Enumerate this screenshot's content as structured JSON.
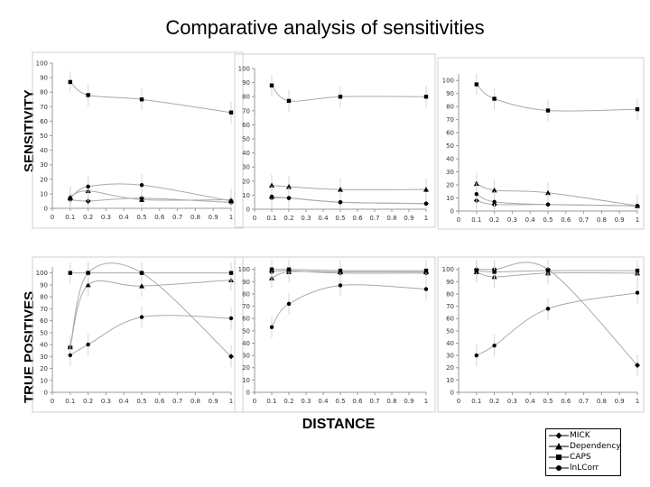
{
  "title": "Comparative analysis of sensitivities",
  "row_labels": [
    "SENSITIVITY",
    "TRUE POSITIVES"
  ],
  "x_axis_label": "DISTANCE",
  "legend": [
    "MICK",
    "Dependency",
    "CAPS",
    "lnLCorr"
  ],
  "colors": {
    "line": "#aaaaaa",
    "marker": "#000000",
    "axis": "#999999"
  },
  "chart_data": [
    {
      "type": "line",
      "panel": "sensitivity-1",
      "x_ticks": [
        0,
        0.1,
        0.2,
        0.3,
        0.4,
        0.5,
        0.6,
        0.7,
        0.8,
        0.9,
        1
      ],
      "xlim": [
        0,
        1
      ],
      "y_ticks": [
        0,
        10,
        20,
        30,
        40,
        50,
        60,
        70,
        80,
        90,
        100
      ],
      "ylim": [
        0,
        100
      ],
      "series": [
        {
          "name": "MICK",
          "x": [
            0.1,
            0.2,
            0.5,
            1
          ],
          "y": [
            6,
            5,
            7,
            4
          ]
        },
        {
          "name": "Dependency",
          "x": [
            0.1,
            0.2,
            0.5,
            1
          ],
          "y": [
            8,
            12,
            6,
            6
          ]
        },
        {
          "name": "CAPS",
          "x": [
            0.1,
            0.2,
            0.5,
            1
          ],
          "y": [
            87,
            78,
            75,
            66
          ]
        },
        {
          "name": "lnLCorr",
          "x": [
            0.1,
            0.2,
            0.5,
            1
          ],
          "y": [
            7,
            15,
            16,
            5
          ]
        }
      ]
    },
    {
      "type": "line",
      "panel": "sensitivity-2",
      "x_ticks": [
        0,
        0.1,
        0.2,
        0.3,
        0.4,
        0.5,
        0.6,
        0.7,
        0.8,
        0.9,
        1
      ],
      "xlim": [
        0,
        1
      ],
      "y_ticks": [
        0,
        10,
        20,
        30,
        40,
        50,
        60,
        70,
        80,
        90,
        100
      ],
      "ylim": [
        0,
        100
      ],
      "series": [
        {
          "name": "MICK",
          "x": [
            0.1,
            0.2,
            0.5,
            1
          ],
          "y": [
            8,
            8,
            5,
            4
          ]
        },
        {
          "name": "Dependency",
          "x": [
            0.1,
            0.2,
            0.5,
            1
          ],
          "y": [
            17,
            16,
            14,
            14
          ]
        },
        {
          "name": "CAPS",
          "x": [
            0.1,
            0.2,
            0.5,
            1
          ],
          "y": [
            88,
            77,
            80,
            80
          ]
        },
        {
          "name": "lnLCorr",
          "x": [
            0.1,
            0.2,
            0.5,
            1
          ],
          "y": [
            9,
            8,
            5,
            4
          ]
        }
      ]
    },
    {
      "type": "line",
      "panel": "sensitivity-3",
      "x_ticks": [
        0,
        0.1,
        0.2,
        0.3,
        0.4,
        0.5,
        0.6,
        0.7,
        0.8,
        0.9,
        1
      ],
      "xlim": [
        0,
        1
      ],
      "y_ticks": [
        0,
        10,
        20,
        30,
        40,
        50,
        60,
        70,
        80,
        90,
        100
      ],
      "ylim": [
        0,
        105
      ],
      "series": [
        {
          "name": "MICK",
          "x": [
            0.1,
            0.2,
            0.5,
            1
          ],
          "y": [
            8,
            5,
            5,
            4
          ]
        },
        {
          "name": "Dependency",
          "x": [
            0.1,
            0.2,
            0.5,
            1
          ],
          "y": [
            21,
            16,
            14,
            4
          ]
        },
        {
          "name": "CAPS",
          "x": [
            0.1,
            0.2,
            0.5,
            1
          ],
          "y": [
            97,
            86,
            77,
            78
          ]
        },
        {
          "name": "lnLCorr",
          "x": [
            0.1,
            0.2,
            0.5,
            1
          ],
          "y": [
            13,
            7,
            5,
            4
          ]
        }
      ]
    },
    {
      "type": "line",
      "panel": "true-positives-1",
      "x_ticks": [
        0,
        0.1,
        0.2,
        0.3,
        0.4,
        0.5,
        0.6,
        0.7,
        0.8,
        0.9,
        1
      ],
      "xlim": [
        0,
        1
      ],
      "y_ticks": [
        0,
        10,
        20,
        30,
        40,
        50,
        60,
        70,
        80,
        90,
        100
      ],
      "ylim": [
        0,
        105
      ],
      "series": [
        {
          "name": "MICK",
          "x": [
            0.1,
            0.2,
            0.5,
            1
          ],
          "y": [
            38,
            100,
            100,
            30
          ]
        },
        {
          "name": "Dependency",
          "x": [
            0.1,
            0.2,
            0.5,
            1
          ],
          "y": [
            38,
            90,
            89,
            94
          ]
        },
        {
          "name": "CAPS",
          "x": [
            0.1,
            0.2,
            0.5,
            1
          ],
          "y": [
            100,
            100,
            100,
            100
          ]
        },
        {
          "name": "lnLCorr",
          "x": [
            0.1,
            0.2,
            0.5,
            1
          ],
          "y": [
            31,
            40,
            63,
            62
          ]
        }
      ]
    },
    {
      "type": "line",
      "panel": "true-positives-2",
      "x_ticks": [
        0,
        0.1,
        0.2,
        0.3,
        0.4,
        0.5,
        0.6,
        0.7,
        0.8,
        0.9,
        1
      ],
      "xlim": [
        0,
        1
      ],
      "y_ticks": [
        0,
        10,
        20,
        30,
        40,
        50,
        60,
        70,
        80,
        90,
        100
      ],
      "ylim": [
        0,
        102
      ],
      "series": [
        {
          "name": "MICK",
          "x": [
            0.1,
            0.2,
            0.5,
            1
          ],
          "y": [
            98,
            99,
            97,
            97
          ]
        },
        {
          "name": "Dependency",
          "x": [
            0.1,
            0.2,
            0.5,
            1
          ],
          "y": [
            93,
            98,
            98,
            98
          ]
        },
        {
          "name": "CAPS",
          "x": [
            0.1,
            0.2,
            0.5,
            1
          ],
          "y": [
            100,
            100,
            99,
            99
          ]
        },
        {
          "name": "lnLCorr",
          "x": [
            0.1,
            0.2,
            0.5,
            1
          ],
          "y": [
            53,
            72,
            87,
            84
          ]
        }
      ]
    },
    {
      "type": "line",
      "panel": "true-positives-3",
      "x_ticks": [
        0,
        0.1,
        0.2,
        0.3,
        0.4,
        0.5,
        0.6,
        0.7,
        0.8,
        0.9,
        1
      ],
      "xlim": [
        0,
        1
      ],
      "y_ticks": [
        0,
        10,
        20,
        30,
        40,
        50,
        60,
        70,
        80,
        90,
        100
      ],
      "ylim": [
        0,
        102
      ],
      "series": [
        {
          "name": "MICK",
          "x": [
            0.1,
            0.2,
            0.5,
            1
          ],
          "y": [
            100,
            100,
            100,
            22
          ]
        },
        {
          "name": "Dependency",
          "x": [
            0.1,
            0.2,
            0.5,
            1
          ],
          "y": [
            98,
            94,
            97,
            97
          ]
        },
        {
          "name": "CAPS",
          "x": [
            0.1,
            0.2,
            0.5,
            1
          ],
          "y": [
            99,
            98,
            99,
            99
          ]
        },
        {
          "name": "lnLCorr",
          "x": [
            0.1,
            0.2,
            0.5,
            1
          ],
          "y": [
            30,
            38,
            68,
            81
          ]
        }
      ]
    }
  ]
}
